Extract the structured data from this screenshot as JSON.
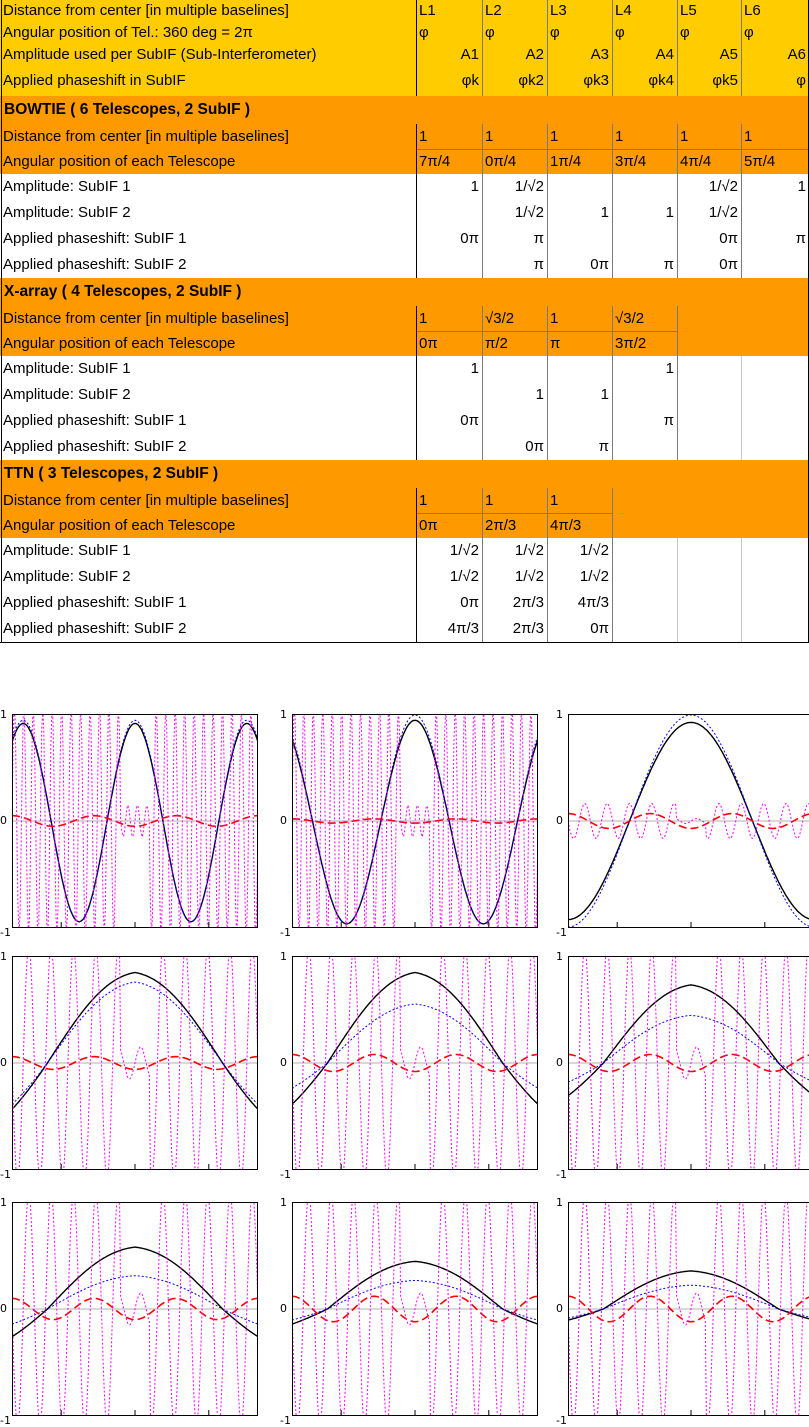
{
  "header": {
    "labels": [
      "Distance from center [in multiple baselines]",
      "Angular position of Tel.: 360 deg = 2π",
      "Amplitude used per SubIF (Sub-Interferometer)",
      "Applied phaseshift in SubIF"
    ],
    "columns": [
      {
        "name": "L1",
        "angle": "φ",
        "amp": "A1",
        "phase": "φk"
      },
      {
        "name": "L2",
        "angle": "φ",
        "amp": "A2",
        "phase": "φk2"
      },
      {
        "name": "L3",
        "angle": "φ",
        "amp": "A3",
        "phase": "φk3"
      },
      {
        "name": "L4",
        "angle": "φ",
        "amp": "A4",
        "phase": "φk4"
      },
      {
        "name": "L5",
        "angle": "φ",
        "amp": "A5",
        "phase": "φk5"
      },
      {
        "name": "L6",
        "angle": "φ",
        "amp": "A6",
        "phase": "φ"
      }
    ]
  },
  "sections": [
    {
      "title": "BOWTIE ( 6 Telescopes, 2 SubIF )",
      "distance_label": "Distance from center [in multiple baselines]",
      "angle_label": "Angular position of each Telescope",
      "distance": [
        "1",
        "1",
        "1",
        "1",
        "1",
        "1"
      ],
      "angle": [
        "7π/4",
        "0π/4",
        "1π/4",
        "3π/4",
        "4π/4",
        "5π/4"
      ],
      "rows": [
        {
          "label": "Amplitude: SubIF 1",
          "values": [
            "1",
            "1/√2",
            "",
            "",
            "1/√2",
            "1"
          ]
        },
        {
          "label": "Amplitude: SubIF 2",
          "values": [
            "",
            "1/√2",
            "1",
            "1",
            "1/√2",
            ""
          ]
        },
        {
          "label": "Applied phaseshift: SubIF 1",
          "values": [
            "0π",
            "π",
            "",
            "",
            "0π",
            "π"
          ]
        },
        {
          "label": "Applied phaseshift: SubIF 2",
          "values": [
            "",
            "π",
            "0π",
            "π",
            "0π",
            ""
          ]
        }
      ]
    },
    {
      "title": "X-array ( 4 Telescopes, 2 SubIF )",
      "distance_label": "Distance from center [in multiple baselines]",
      "angle_label": "Angular position of each Telescope",
      "distance": [
        "1",
        "√3/2",
        "1",
        "√3/2"
      ],
      "angle": [
        "0π",
        "π/2",
        "π",
        "3π/2"
      ],
      "rows": [
        {
          "label": "Amplitude: SubIF 1",
          "values": [
            "1",
            "",
            "",
            "1",
            "",
            ""
          ]
        },
        {
          "label": "Amplitude: SubIF 2",
          "values": [
            "",
            "1",
            "1",
            "",
            "",
            ""
          ]
        },
        {
          "label": "Applied phaseshift: SubIF 1",
          "values": [
            "0π",
            "",
            "",
            "π",
            "",
            ""
          ]
        },
        {
          "label": "Applied phaseshift: SubIF 2",
          "values": [
            "",
            "0π",
            "π",
            "",
            "",
            ""
          ]
        }
      ]
    },
    {
      "title": "TTN ( 3 Telescopes, 2 SubIF )",
      "distance_label": "Distance from center [in multiple baselines]",
      "angle_label": "Angular position of each Telescope",
      "distance": [
        "1",
        "1",
        "1"
      ],
      "angle": [
        "0π",
        "2π/3",
        "4π/3"
      ],
      "rows": [
        {
          "label": "Amplitude: SubIF 1",
          "values": [
            "1/√2",
            "1/√2",
            "1/√2",
            "",
            "",
            ""
          ]
        },
        {
          "label": "Amplitude: SubIF 2",
          "values": [
            "1/√2",
            "1/√2",
            "1/√2",
            "",
            "",
            ""
          ]
        },
        {
          "label": "Applied phaseshift: SubIF 1",
          "values": [
            "0π",
            "2π/3",
            "4π/3",
            "",
            "",
            ""
          ]
        },
        {
          "label": "Applied phaseshift: SubIF 2",
          "values": [
            "4π/3",
            "2π/3",
            "0π",
            "",
            "",
            ""
          ]
        }
      ]
    }
  ],
  "colors": {
    "header_fill": "#FFCC00",
    "section_fill": "#FF9900",
    "black_curve": "#000000",
    "blue_curve": "#0000FF",
    "red_curve": "#FF0000",
    "magenta_curve": "#FF00FF"
  },
  "chart_data": [
    {
      "type": "line",
      "series": [
        {
          "style": "solid",
          "color": "#000000",
          "peak": 0.92,
          "trough": -0.95
        },
        {
          "style": "dotted",
          "color": "#0000FF",
          "peak": 0.95,
          "trough": -0.95
        },
        {
          "style": "dashed",
          "color": "#FF0000",
          "peak": 0.05,
          "trough": -0.05
        },
        {
          "style": "dotted",
          "color": "#FF00FF",
          "peak": 1,
          "trough": -1
        }
      ],
      "ylim": [
        -1,
        1
      ],
      "yticks": [
        "1",
        "0",
        "-1"
      ]
    },
    {
      "type": "line",
      "series": [
        {
          "style": "solid",
          "color": "#000000",
          "peak": 0.95,
          "trough": -0.97
        },
        {
          "style": "dotted",
          "color": "#0000FF",
          "peak": 1,
          "trough": -0.97
        },
        {
          "style": "dashed",
          "color": "#FF0000",
          "peak": 0.02,
          "trough": -0.02
        },
        {
          "style": "dotted",
          "color": "#FF00FF",
          "peak": 1,
          "trough": -1
        }
      ],
      "ylim": [
        -1,
        1
      ],
      "yticks": [
        "1",
        "0",
        "-1"
      ]
    },
    {
      "type": "line",
      "series": [
        {
          "style": "solid",
          "color": "#000000",
          "peak": 0.93,
          "trough": -0.93
        },
        {
          "style": "dotted",
          "color": "#0000FF",
          "peak": 1,
          "trough": -1
        },
        {
          "style": "dashed",
          "color": "#FF0000",
          "peak": 0.07,
          "trough": -0.07
        },
        {
          "style": "dotted",
          "color": "#FF00FF",
          "peak": 0.15,
          "trough": -0.15
        }
      ],
      "ylim": [
        -1,
        1
      ],
      "yticks": [
        "1",
        "0",
        "-1"
      ]
    },
    {
      "type": "line",
      "series": [
        {
          "style": "solid",
          "color": "#000000",
          "peak": 0.95,
          "trough": -0.92
        },
        {
          "style": "dotted",
          "color": "#0000FF",
          "peak": 0.85,
          "trough": -0.82
        },
        {
          "style": "dashed",
          "color": "#FF0000",
          "peak": 0.06,
          "trough": -0.06
        },
        {
          "style": "dotted",
          "color": "#FF00FF",
          "peak": 0.3,
          "trough": -0.3
        }
      ],
      "ylim": [
        -1,
        1
      ],
      "yticks": [
        "1",
        "0",
        "-1"
      ]
    },
    {
      "type": "line",
      "series": [
        {
          "style": "solid",
          "color": "#000000",
          "peak": 0.95,
          "trough": -0.82
        },
        {
          "style": "dotted",
          "color": "#0000FF",
          "peak": 0.62,
          "trough": -0.5
        },
        {
          "style": "dashed",
          "color": "#FF0000",
          "peak": 0.08,
          "trough": -0.08
        },
        {
          "style": "dotted",
          "color": "#FF00FF",
          "peak": 1,
          "trough": -1
        }
      ],
      "ylim": [
        -1,
        1
      ],
      "yticks": [
        "1",
        "0",
        "-1"
      ]
    },
    {
      "type": "line",
      "series": [
        {
          "style": "solid",
          "color": "#000000",
          "peak": 0.82,
          "trough": -0.65
        },
        {
          "style": "dotted",
          "color": "#0000FF",
          "peak": 0.5,
          "trough": -0.38
        },
        {
          "style": "dashed",
          "color": "#FF0000",
          "peak": 0.08,
          "trough": -0.08
        },
        {
          "style": "dotted",
          "color": "#FF00FF",
          "peak": 1,
          "trough": -1
        }
      ],
      "ylim": [
        -1,
        1
      ],
      "yticks": [
        "1",
        "0",
        "-1"
      ]
    },
    {
      "type": "line",
      "series": [
        {
          "style": "solid",
          "color": "#000000",
          "peak": 0.65,
          "trough": -0.55
        },
        {
          "style": "dotted",
          "color": "#0000FF",
          "peak": 0.35,
          "trough": -0.3
        },
        {
          "style": "dashed",
          "color": "#FF0000",
          "peak": 0.1,
          "trough": -0.1
        },
        {
          "style": "dotted",
          "color": "#FF00FF",
          "peak": 1,
          "trough": -1
        }
      ],
      "ylim": [
        -1,
        1
      ],
      "yticks": [
        "1",
        "0",
        "-1"
      ]
    },
    {
      "type": "line",
      "series": [
        {
          "style": "solid",
          "color": "#000000",
          "peak": 0.5,
          "trough": -0.3
        },
        {
          "style": "dotted",
          "color": "#0000FF",
          "peak": 0.3,
          "trough": -0.22
        },
        {
          "style": "dashed",
          "color": "#FF0000",
          "peak": 0.12,
          "trough": -0.12
        },
        {
          "style": "dotted",
          "color": "#FF00FF",
          "peak": 1,
          "trough": -1
        }
      ],
      "ylim": [
        -1,
        1
      ],
      "yticks": [
        "1",
        "0",
        "-1"
      ]
    },
    {
      "type": "line",
      "series": [
        {
          "style": "solid",
          "color": "#000000",
          "peak": 0.4,
          "trough": -0.22
        },
        {
          "style": "dotted",
          "color": "#0000FF",
          "peak": 0.25,
          "trough": -0.18
        },
        {
          "style": "dashed",
          "color": "#FF0000",
          "peak": 0.12,
          "trough": -0.12
        },
        {
          "style": "dotted",
          "color": "#FF00FF",
          "peak": 1,
          "trough": -1
        }
      ],
      "ylim": [
        -1,
        1
      ],
      "yticks": [
        "1",
        "0",
        "-1"
      ]
    }
  ]
}
